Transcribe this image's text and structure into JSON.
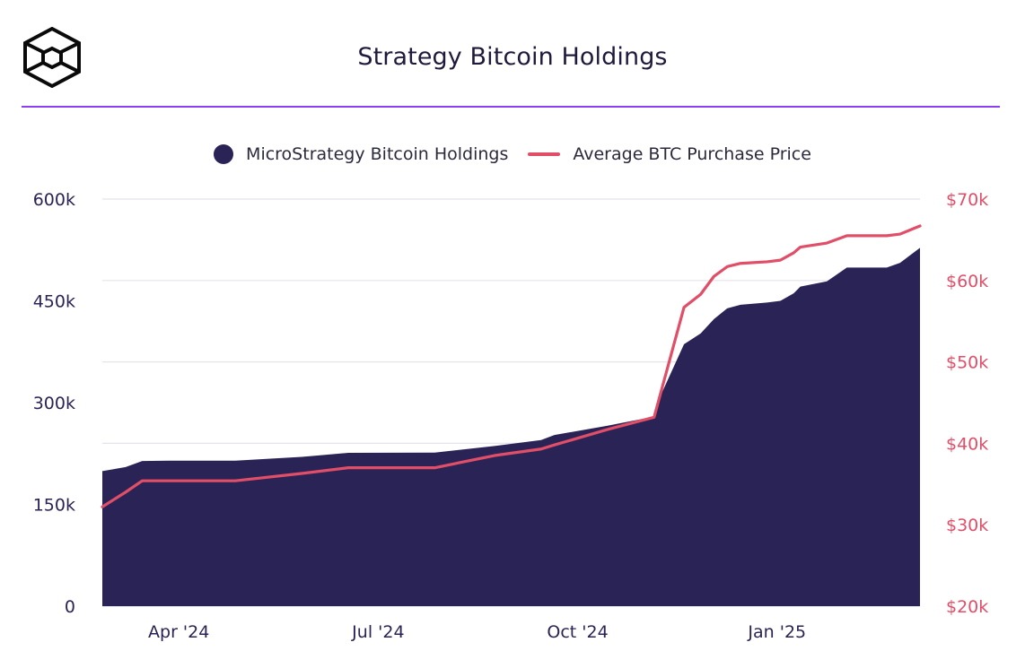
{
  "header": {
    "title": "Strategy Bitcoin Holdings",
    "logo_icon": "cube-logo-icon",
    "accent_color": "#8c3ff0"
  },
  "colors": {
    "holdings": "#2a2456",
    "price": "#e04e68",
    "grid": "#e4e4ea"
  },
  "chart_data": {
    "type": "area",
    "title": "Strategy Bitcoin Holdings",
    "legend": [
      {
        "name": "MicroStrategy Bitcoin Holdings",
        "marker": "circle"
      },
      {
        "name": "Average BTC Purchase Price",
        "marker": "line"
      }
    ],
    "legend_position": "top-center",
    "x_range": [
      0,
      12
    ],
    "x_ticks": [
      {
        "label": "Apr '24",
        "value": 1
      },
      {
        "label": "Jul '24",
        "value": 4
      },
      {
        "label": "Oct '24",
        "value": 7
      },
      {
        "label": "Jan '25",
        "value": 10
      }
    ],
    "y_left": {
      "ticks": [
        "0",
        "150k",
        "300k",
        "450k",
        "600k"
      ],
      "tick_values": [
        0,
        150000,
        300000,
        450000,
        600000
      ],
      "range": [
        0,
        600000
      ]
    },
    "y_right": {
      "ticks": [
        "$20k",
        "$30k",
        "$40k",
        "$50k",
        "$60k",
        "$70k"
      ],
      "tick_values": [
        20000,
        30000,
        40000,
        50000,
        60000,
        70000
      ],
      "range": [
        20000,
        70000
      ]
    },
    "grid": true,
    "series": [
      {
        "name": "MicroStrategy Bitcoin Holdings",
        "type": "area",
        "axis": "left",
        "points": [
          [
            0.0,
            199000
          ],
          [
            0.35,
            205000
          ],
          [
            0.6,
            214000
          ],
          [
            1.0,
            214400
          ],
          [
            2.0,
            214400
          ],
          [
            3.0,
            220000
          ],
          [
            3.7,
            226000
          ],
          [
            5.0,
            226300
          ],
          [
            5.9,
            236000
          ],
          [
            6.6,
            244800
          ],
          [
            6.8,
            252200
          ],
          [
            7.6,
            266000
          ],
          [
            8.3,
            279400
          ],
          [
            8.35,
            300000
          ],
          [
            8.75,
            386000
          ],
          [
            9.0,
            402000
          ],
          [
            9.2,
            423000
          ],
          [
            9.4,
            439000
          ],
          [
            9.6,
            444300
          ],
          [
            10.0,
            447500
          ],
          [
            10.2,
            450000
          ],
          [
            10.4,
            461000
          ],
          [
            10.5,
            471000
          ],
          [
            10.9,
            478700
          ],
          [
            11.2,
            499100
          ],
          [
            11.4,
            499100
          ],
          [
            11.8,
            499100
          ],
          [
            12.0,
            506000
          ],
          [
            12.3,
            528200
          ]
        ]
      },
      {
        "name": "Average BTC Purchase Price",
        "type": "line",
        "axis": "right",
        "points": [
          [
            0.0,
            32200
          ],
          [
            0.35,
            34000
          ],
          [
            0.6,
            35400
          ],
          [
            1.0,
            35400
          ],
          [
            2.0,
            35400
          ],
          [
            3.0,
            36300
          ],
          [
            3.7,
            37000
          ],
          [
            5.0,
            37000
          ],
          [
            5.9,
            38500
          ],
          [
            6.6,
            39300
          ],
          [
            6.8,
            39800
          ],
          [
            7.6,
            41700
          ],
          [
            8.3,
            43200
          ],
          [
            8.75,
            56700
          ],
          [
            9.0,
            58300
          ],
          [
            9.2,
            60500
          ],
          [
            9.4,
            61700
          ],
          [
            9.6,
            62100
          ],
          [
            10.0,
            62300
          ],
          [
            10.2,
            62500
          ],
          [
            10.4,
            63400
          ],
          [
            10.5,
            64100
          ],
          [
            10.9,
            64600
          ],
          [
            11.2,
            65500
          ],
          [
            11.4,
            65500
          ],
          [
            11.8,
            65500
          ],
          [
            12.0,
            65700
          ],
          [
            12.3,
            66700
          ]
        ]
      }
    ]
  }
}
